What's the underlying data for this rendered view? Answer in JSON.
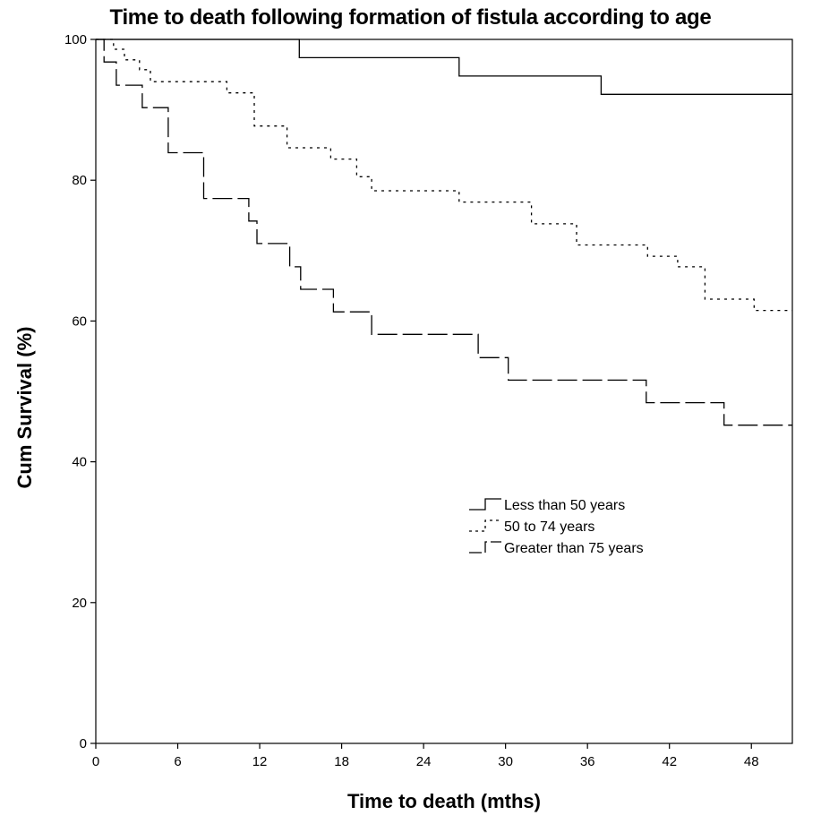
{
  "chart_data": {
    "type": "line",
    "title": "Time to death following formation of fistula according to age",
    "xlabel": "Time to death (mths)",
    "ylabel": "Cum Survival (%)",
    "xlim": [
      0,
      51
    ],
    "ylim": [
      0,
      100
    ],
    "x_ticks": [
      0,
      6,
      12,
      18,
      24,
      30,
      36,
      42,
      48
    ],
    "y_ticks": [
      0,
      20,
      40,
      60,
      80,
      100
    ],
    "grid": false,
    "legend_position": "center-right",
    "series": [
      {
        "name": "Less than 50 years",
        "style": "solid",
        "color": "#000000",
        "x": [
          0,
          14.9,
          26.6,
          37.0,
          51
        ],
        "y": [
          100,
          97.4,
          94.8,
          92.2,
          92.2
        ]
      },
      {
        "name": "50 to 74 years",
        "style": "dotted",
        "color": "#000000",
        "x": [
          0,
          1.3,
          2.1,
          3.2,
          4.0,
          9.6,
          11.6,
          14.0,
          17.2,
          19.1,
          20.2,
          26.6,
          31.9,
          35.2,
          40.4,
          42.6,
          44.6,
          48.2,
          51
        ],
        "y": [
          100,
          98.6,
          97.1,
          95.7,
          94.0,
          92.4,
          87.7,
          84.6,
          83.0,
          80.5,
          78.5,
          76.9,
          73.8,
          70.8,
          69.2,
          67.7,
          63.1,
          61.5,
          61.5
        ]
      },
      {
        "name": "Greater than 75 years",
        "style": "dashed",
        "color": "#000000",
        "x": [
          0,
          0.6,
          1.5,
          3.4,
          5.3,
          7.9,
          11.2,
          11.8,
          14.2,
          15.0,
          17.4,
          20.2,
          28.0,
          30.2,
          40.3,
          46.0,
          51
        ],
        "y": [
          100,
          96.8,
          93.5,
          90.3,
          83.9,
          77.4,
          74.2,
          71.0,
          67.7,
          64.5,
          61.3,
          58.1,
          54.8,
          51.6,
          48.4,
          45.2,
          45.2
        ]
      }
    ]
  }
}
